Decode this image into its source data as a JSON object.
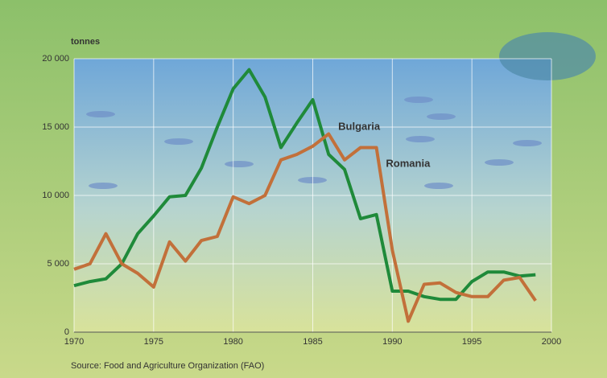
{
  "chart_data": {
    "type": "line",
    "y_label": "tonnes",
    "source": "Source: Food and Agriculture Organization (FAO)",
    "x": [
      1970,
      1971,
      1972,
      1973,
      1974,
      1975,
      1976,
      1977,
      1978,
      1979,
      1980,
      1981,
      1982,
      1983,
      1984,
      1985,
      1986,
      1987,
      1988,
      1989,
      1990,
      1991,
      1992,
      1993,
      1994,
      1995,
      1996,
      1997,
      1998,
      1999
    ],
    "series": [
      {
        "name": "Bulgaria",
        "color": "#1f8a3a",
        "values": [
          3400,
          3700,
          3900,
          5000,
          7200,
          8500,
          9900,
          10000,
          12000,
          15000,
          17800,
          19200,
          17200,
          13500,
          15300,
          17000,
          13000,
          11900,
          8300,
          8600,
          3000,
          3000,
          2600,
          2400,
          2400,
          3700,
          4400,
          4400,
          4100,
          4200
        ]
      },
      {
        "name": "Romania",
        "color": "#c2703a",
        "values": [
          4600,
          5000,
          7200,
          5000,
          4300,
          3300,
          6600,
          5200,
          6700,
          7000,
          9900,
          9400,
          10000,
          12600,
          13000,
          13600,
          14500,
          12600,
          13500,
          13500,
          6000,
          800,
          3500,
          3600,
          2900,
          2600,
          2600,
          3800,
          4000,
          2300
        ]
      }
    ],
    "xlim": [
      1970,
      2000
    ],
    "xticks": [
      1970,
      1975,
      1980,
      1985,
      1990,
      1995,
      2000
    ],
    "ylim": [
      0,
      20000
    ],
    "yticks": [
      0,
      {
        "value": 5000,
        "label": "5 000"
      },
      {
        "value": 10000,
        "label": "10 000"
      },
      {
        "value": 15000,
        "label": "15 000"
      },
      {
        "value": 20000,
        "label": "20 000"
      }
    ],
    "grid": true
  }
}
